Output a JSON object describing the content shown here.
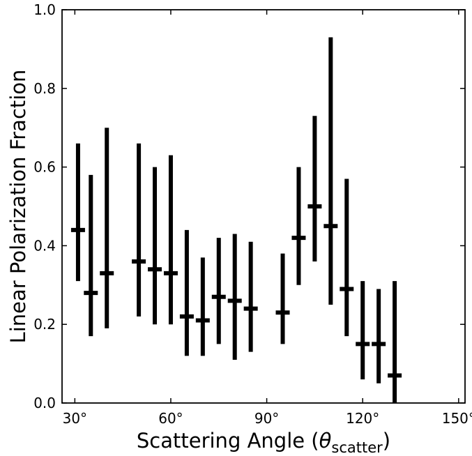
{
  "chart_data": {
    "type": "scatter",
    "title": "",
    "xlabel": "Scattering Angle (",
    "xlabel_symbol": "θ",
    "xlabel_subscript": "scatter",
    "xlabel_suffix": ")",
    "ylabel": "Linear Polarization Fraction",
    "xlim": [
      26,
      152
    ],
    "ylim": [
      0.0,
      1.0
    ],
    "x_ticks": [
      30,
      60,
      90,
      120,
      150
    ],
    "x_tick_labels": [
      "30°",
      "60°",
      "90°",
      "120°",
      "150°"
    ],
    "y_ticks": [
      0.0,
      0.2,
      0.4,
      0.6,
      0.8,
      1.0
    ],
    "y_tick_labels": [
      "0.0",
      "0.2",
      "0.4",
      "0.6",
      "0.8",
      "1.0"
    ],
    "grid": false,
    "series": [
      {
        "color": "#000000",
        "points": [
          {
            "x": 31,
            "y": 0.44,
            "ylow": 0.31,
            "yhigh": 0.66
          },
          {
            "x": 35,
            "y": 0.28,
            "ylow": 0.17,
            "yhigh": 0.58
          },
          {
            "x": 40,
            "y": 0.33,
            "ylow": 0.19,
            "yhigh": 0.7
          },
          {
            "x": 50,
            "y": 0.36,
            "ylow": 0.22,
            "yhigh": 0.66
          },
          {
            "x": 55,
            "y": 0.34,
            "ylow": 0.2,
            "yhigh": 0.6
          },
          {
            "x": 60,
            "y": 0.33,
            "ylow": 0.2,
            "yhigh": 0.63
          },
          {
            "x": 65,
            "y": 0.22,
            "ylow": 0.12,
            "yhigh": 0.44
          },
          {
            "x": 70,
            "y": 0.21,
            "ylow": 0.12,
            "yhigh": 0.37
          },
          {
            "x": 75,
            "y": 0.27,
            "ylow": 0.15,
            "yhigh": 0.42
          },
          {
            "x": 80,
            "y": 0.26,
            "ylow": 0.11,
            "yhigh": 0.43
          },
          {
            "x": 85,
            "y": 0.24,
            "ylow": 0.13,
            "yhigh": 0.41
          },
          {
            "x": 95,
            "y": 0.23,
            "ylow": 0.15,
            "yhigh": 0.38
          },
          {
            "x": 100,
            "y": 0.42,
            "ylow": 0.3,
            "yhigh": 0.6
          },
          {
            "x": 105,
            "y": 0.5,
            "ylow": 0.36,
            "yhigh": 0.73
          },
          {
            "x": 110,
            "y": 0.45,
            "ylow": 0.25,
            "yhigh": 0.93
          },
          {
            "x": 115,
            "y": 0.29,
            "ylow": 0.17,
            "yhigh": 0.57
          },
          {
            "x": 120,
            "y": 0.15,
            "ylow": 0.06,
            "yhigh": 0.31
          },
          {
            "x": 125,
            "y": 0.15,
            "ylow": 0.05,
            "yhigh": 0.29
          },
          {
            "x": 130,
            "y": 0.07,
            "ylow": 0.0,
            "yhigh": 0.31
          }
        ]
      }
    ]
  }
}
